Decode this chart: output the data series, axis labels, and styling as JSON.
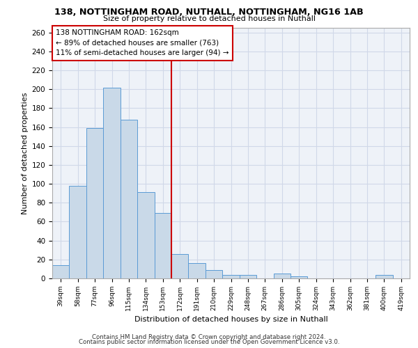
{
  "title1": "138, NOTTINGHAM ROAD, NUTHALL, NOTTINGHAM, NG16 1AB",
  "title2": "Size of property relative to detached houses in Nuthall",
  "xlabel": "Distribution of detached houses by size in Nuthall",
  "ylabel": "Number of detached properties",
  "categories": [
    "39sqm",
    "58sqm",
    "77sqm",
    "96sqm",
    "115sqm",
    "134sqm",
    "153sqm",
    "172sqm",
    "191sqm",
    "210sqm",
    "229sqm",
    "248sqm",
    "267sqm",
    "286sqm",
    "305sqm",
    "324sqm",
    "343sqm",
    "362sqm",
    "381sqm",
    "400sqm",
    "419sqm"
  ],
  "values": [
    14,
    98,
    159,
    202,
    168,
    91,
    69,
    26,
    16,
    9,
    4,
    4,
    0,
    5,
    2,
    0,
    0,
    0,
    0,
    4,
    0
  ],
  "bar_color": "#c9d9e8",
  "bar_edge_color": "#5b9bd5",
  "grid_color": "#d0d8e8",
  "vline_position": 6.5,
  "vline_color": "#cc0000",
  "box_text": "138 NOTTINGHAM ROAD: 162sqm\n← 89% of detached houses are smaller (763)\n11% of semi-detached houses are larger (94) →",
  "box_color": "#cc0000",
  "ylim": [
    0,
    265
  ],
  "yticks": [
    0,
    20,
    40,
    60,
    80,
    100,
    120,
    140,
    160,
    180,
    200,
    220,
    240,
    260
  ],
  "footer1": "Contains HM Land Registry data © Crown copyright and database right 2024.",
  "footer2": "Contains public sector information licensed under the Open Government Licence v3.0.",
  "bg_color": "#eef2f8"
}
